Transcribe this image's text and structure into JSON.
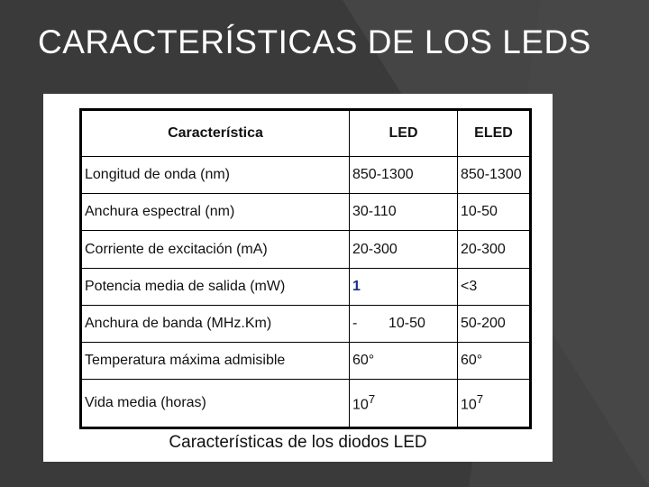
{
  "slide": {
    "title": "CARACTERÍSTICAS DE LOS LEDS"
  },
  "table": {
    "headers": [
      "Característica",
      "LED",
      "ELED"
    ],
    "rows": [
      {
        "param": "Longitud de onda (nm)",
        "led": "850-1300",
        "eled": "850-1300"
      },
      {
        "param": "Anchura espectral (nm)",
        "led": "30-110",
        "eled": "10-50"
      },
      {
        "param": "Corriente de excitación (mA)",
        "led": "20-300",
        "eled": "20-300"
      },
      {
        "param": "Potencia media de salida (mW)",
        "led": "1",
        "eled": "<3"
      },
      {
        "param": "Anchura de banda (MHz.Km)",
        "led_prefix": "-",
        "led": "10-50",
        "eled": "50-200"
      },
      {
        "param": "Temperatura máxima admisible",
        "led": "60°",
        "eled": "60°"
      },
      {
        "param": "Vida media (horas)",
        "led": "10",
        "led_exp": "7",
        "eled": "10",
        "eled_exp": "7"
      }
    ]
  },
  "caption": "Características de los diodos LED",
  "colors": {
    "background": "#3a3a3a",
    "title_text": "#ffffff",
    "highlight_value": "#1a2f8a"
  }
}
